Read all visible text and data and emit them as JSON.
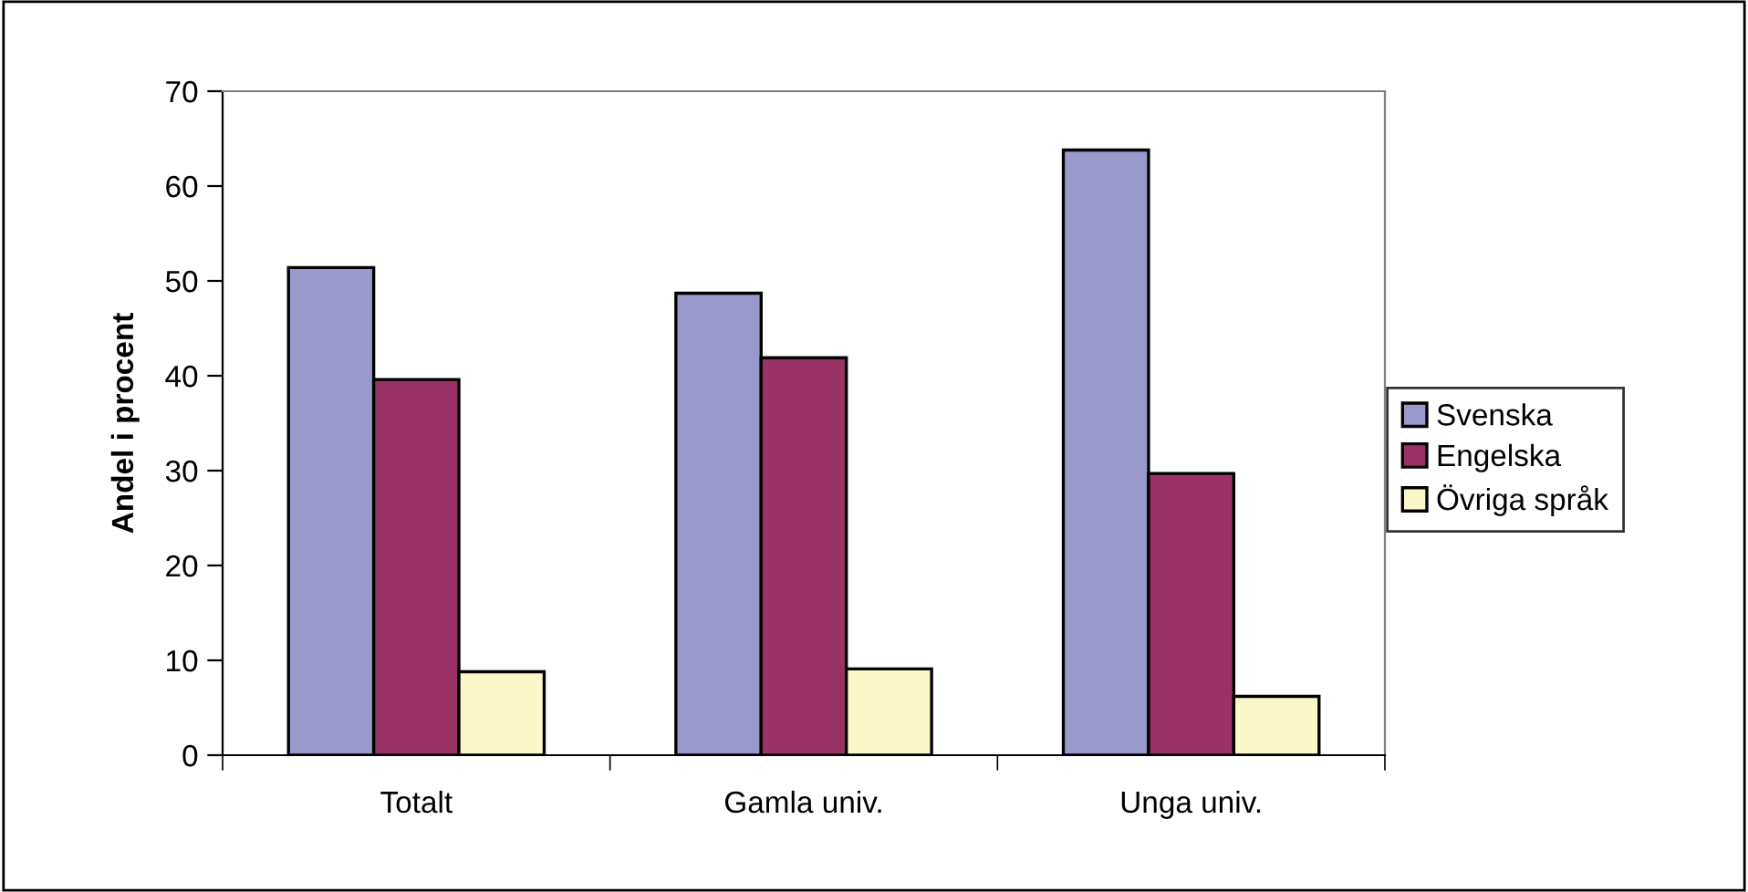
{
  "chart_data": {
    "type": "bar",
    "ylabel": "Andel i procent",
    "categories": [
      "Totalt",
      "Gamla univ.",
      "Unga univ."
    ],
    "series": [
      {
        "name": "Svenska",
        "color": "#9999cc",
        "values": [
          51.4,
          48.7,
          63.8
        ]
      },
      {
        "name": "Engelska",
        "color": "#993366",
        "values": [
          39.6,
          41.9,
          29.7
        ]
      },
      {
        "name": "Övriga språk",
        "color": "#fbf7c8",
        "values": [
          8.8,
          9.1,
          6.2
        ]
      }
    ],
    "ylim": [
      0,
      70
    ],
    "yticks": [
      0,
      10,
      20,
      30,
      40,
      50,
      60,
      70
    ],
    "grid": false,
    "legend": "right"
  }
}
